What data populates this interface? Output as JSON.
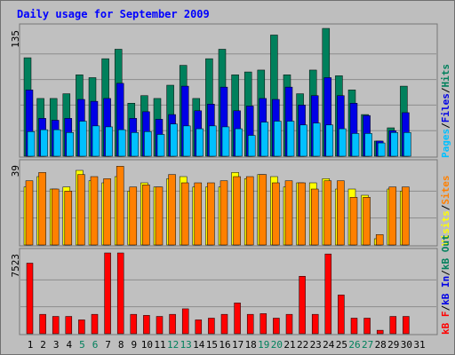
{
  "chart_data": {
    "type": "bar",
    "title": "Daily usage for September 2009",
    "categories": [
      "1",
      "2",
      "3",
      "4",
      "5",
      "6",
      "7",
      "8",
      "9",
      "10",
      "11",
      "12",
      "13",
      "14",
      "15",
      "16",
      "17",
      "18",
      "19",
      "20",
      "21",
      "22",
      "23",
      "24",
      "25",
      "26",
      "27",
      "28",
      "29",
      "30",
      "31"
    ],
    "weekend_days": [
      "5",
      "6",
      "12",
      "13",
      "19",
      "20",
      "26",
      "27"
    ],
    "colors": {
      "hits": "#00805c",
      "files": "#0000e6",
      "pages": "#00c0ff",
      "visits": "#ffff00",
      "sites": "#ff8000",
      "kbin": "#0000e6",
      "kbout": "#00805c",
      "kbf": "#ff0000",
      "title": "#0000ff",
      "weekend_label": "#00805c",
      "day_label": "#000000",
      "plot_bg": "#c0c0c0",
      "frame_bg": "#bebebe"
    },
    "panels": [
      {
        "name": "hits-files-pages",
        "ymax_label": "135",
        "ymax": 135,
        "legend": [
          {
            "text": "Pages",
            "color": "#00c0ff"
          },
          {
            "text": "/",
            "color": "#000000"
          },
          {
            "text": "Files",
            "color": "#0000e6"
          },
          {
            "text": "/",
            "color": "#000000"
          },
          {
            "text": "Hits",
            "color": "#00805c"
          }
        ],
        "series": [
          {
            "name": "Hits",
            "color": "#00805c",
            "values": [
              104,
              61,
              61,
              66,
              86,
              83,
              103,
              113,
              56,
              64,
              61,
              75,
              96,
              61,
              103,
              113,
              86,
              89,
              91,
              128,
              86,
              66,
              91,
              135,
              85,
              70,
              44,
              16,
              30,
              74,
              0
            ]
          },
          {
            "name": "Files",
            "color": "#0000e6",
            "values": [
              70,
              40,
              38,
              40,
              60,
              58,
              61,
              77,
              40,
              47,
              39,
              44,
              74,
              48,
              55,
              73,
              48,
              53,
              61,
              60,
              73,
              54,
              64,
              83,
              64,
              56,
              43,
              16,
              27,
              46,
              0
            ]
          },
          {
            "name": "Pages",
            "color": "#00c0ff",
            "values": [
              26,
              28,
              28,
              25,
              37,
              32,
              31,
              28,
              25,
              26,
              23,
              34,
              32,
              29,
              32,
              31,
              29,
              22,
              36,
              37,
              37,
              33,
              35,
              33,
              29,
              24,
              24,
              14,
              25,
              25,
              0
            ]
          }
        ]
      },
      {
        "name": "visits-sites",
        "ymax_label": "39",
        "ymax": 39,
        "legend": [
          {
            "text": "Visits",
            "color": "#ffff00"
          },
          {
            "text": "/",
            "color": "#000000"
          },
          {
            "text": "Sites",
            "color": "#ff8000"
          }
        ],
        "series": [
          {
            "name": "Visits",
            "color": "#ffff00",
            "values": [
              28,
              33,
              27,
              28,
              36,
              31,
              30,
              33,
              26,
              30,
              28,
              32,
              33,
              28,
              28,
              28,
              35,
              32,
              34,
              33,
              28,
              30,
              30,
              32,
              27,
              27,
              24,
              3,
              27,
              26,
              0
            ]
          },
          {
            "name": "Sites",
            "color": "#ff8000",
            "values": [
              31,
              35,
              27,
              26,
              34,
              33,
              32,
              38,
              28,
              29,
              28,
              34,
              30,
              30,
              30,
              31,
              33,
              33,
              34,
              30,
              31,
              30,
              27,
              31,
              31,
              23,
              23,
              5,
              28,
              28,
              0
            ]
          }
        ]
      },
      {
        "name": "kbf-kbin-kbout",
        "ymax_label": "7523",
        "ymax": 7523,
        "legend": [
          {
            "text": "kB F",
            "color": "#ff0000"
          },
          {
            "text": "/",
            "color": "#000000"
          },
          {
            "text": "kB In",
            "color": "#0000e6"
          },
          {
            "text": "/",
            "color": "#000000"
          },
          {
            "text": "kB Out",
            "color": "#00805c"
          }
        ],
        "series": [
          {
            "name": "kB F",
            "color": "#ff0000",
            "values": [
              6574,
              1805,
              1611,
              1611,
              1290,
              1805,
              7523,
              7523,
              1805,
              1708,
              1611,
              1805,
              2320,
              1290,
              1450,
              1805,
              2867,
              1805,
              1870,
              1450,
              1805,
              5352,
              1805,
              7427,
              3609,
              1450,
              1450,
              322,
              1611,
              1611,
              0
            ]
          }
        ]
      }
    ]
  }
}
